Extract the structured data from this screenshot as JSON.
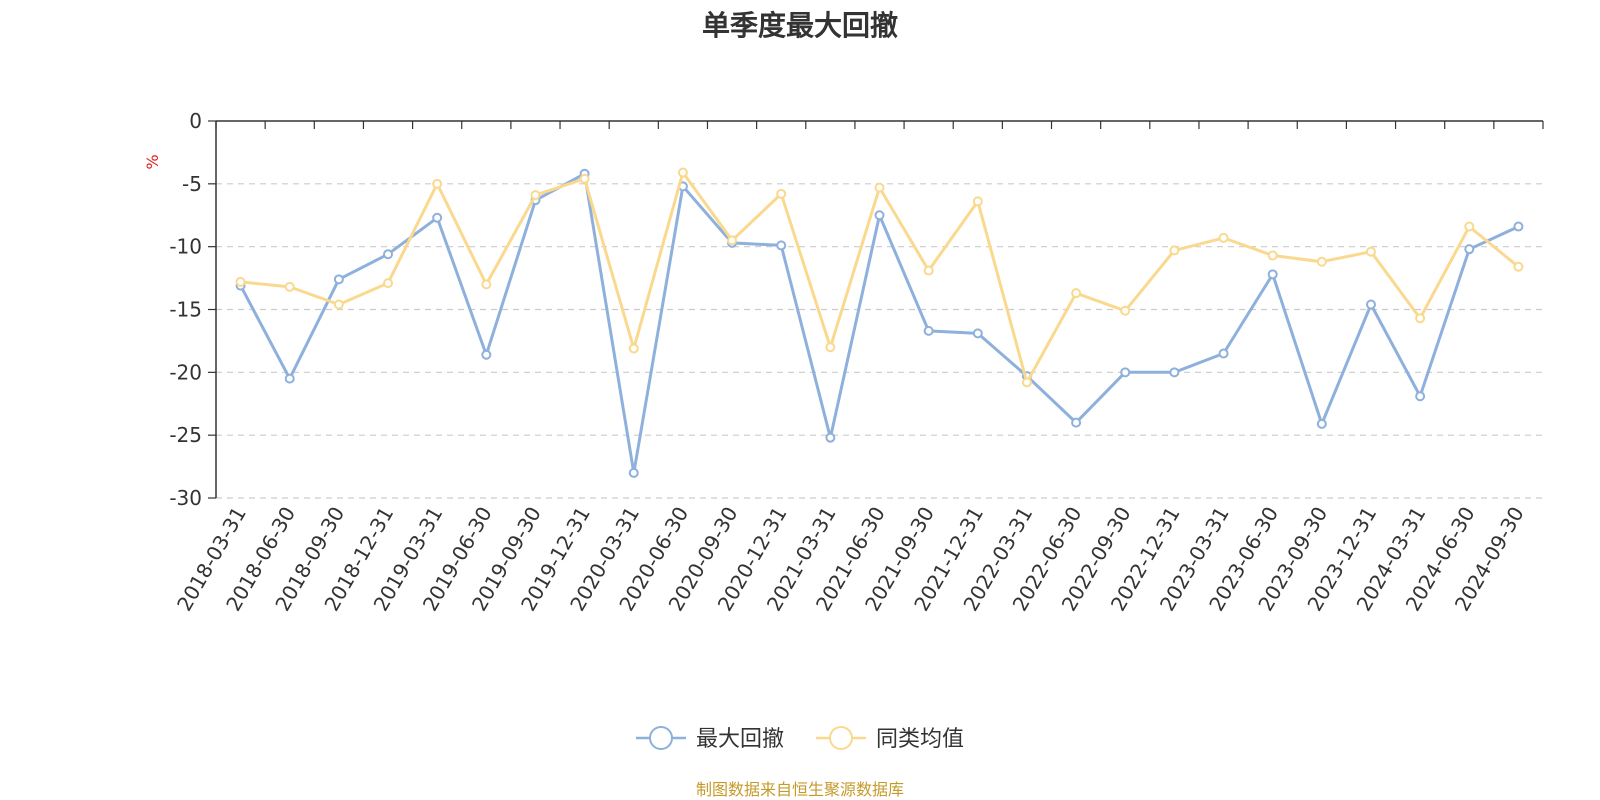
{
  "chart_data": {
    "type": "line",
    "title": "单季度最大回撤",
    "ylabel": "%",
    "xlabel": "",
    "ylim": [
      -30,
      0
    ],
    "yticks": [
      0,
      -5,
      -10,
      -15,
      -20,
      -25,
      -30
    ],
    "grid": true,
    "legend_position": "bottom",
    "categories": [
      "2018-03-31",
      "2018-06-30",
      "2018-09-30",
      "2018-12-31",
      "2019-03-31",
      "2019-06-30",
      "2019-09-30",
      "2019-12-31",
      "2020-03-31",
      "2020-06-30",
      "2020-09-30",
      "2020-12-31",
      "2021-03-31",
      "2021-06-30",
      "2021-09-30",
      "2021-12-31",
      "2022-03-31",
      "2022-06-30",
      "2022-09-30",
      "2022-12-31",
      "2023-03-31",
      "2023-06-30",
      "2023-09-30",
      "2023-12-31",
      "2024-03-31",
      "2024-06-30",
      "2024-09-30"
    ],
    "series": [
      {
        "name": "最大回撤",
        "color": "#8eb0dc",
        "values": [
          -13.1,
          -20.5,
          -12.6,
          -10.6,
          -7.7,
          -18.6,
          -6.3,
          -4.2,
          -28.0,
          -5.2,
          -9.7,
          -9.9,
          -25.2,
          -7.5,
          -16.7,
          -16.9,
          -20.3,
          -24.0,
          -20.0,
          -20.0,
          -18.5,
          -12.2,
          -24.1,
          -14.6,
          -21.9,
          -10.2,
          -8.4
        ]
      },
      {
        "name": "同类均值",
        "color": "#fad98f",
        "values": [
          -12.8,
          -13.2,
          -14.6,
          -12.9,
          -5.0,
          -13.0,
          -5.9,
          -4.6,
          -18.1,
          -4.1,
          -9.5,
          -5.8,
          -18.0,
          -5.3,
          -11.9,
          -6.4,
          -20.8,
          -13.7,
          -15.1,
          -10.3,
          -9.3,
          -10.7,
          -11.2,
          -10.4,
          -15.7,
          -8.4,
          -11.6
        ]
      }
    ]
  },
  "footer": "制图数据来自恒生聚源数据库"
}
